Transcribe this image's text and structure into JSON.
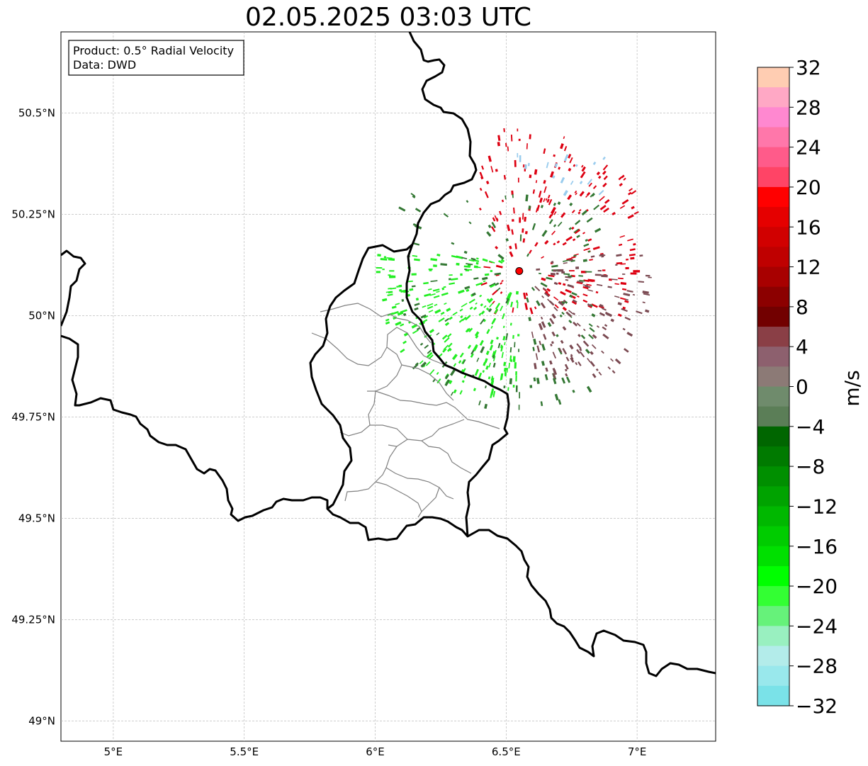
{
  "title": "02.05.2025 03:03 UTC",
  "info_box": {
    "line1": "Product: 0.5° Radial Velocity",
    "line2": "Data: DWD"
  },
  "lon_ticks": [
    {
      "value": 5.0,
      "label": "5°E"
    },
    {
      "value": 5.5,
      "label": "5.5°E"
    },
    {
      "value": 6.0,
      "label": "6°E"
    },
    {
      "value": 6.5,
      "label": "6.5°E"
    },
    {
      "value": 7.0,
      "label": "7°E"
    }
  ],
  "lat_ticks": [
    {
      "value": 50.5,
      "label": "50.5°N"
    },
    {
      "value": 50.25,
      "label": "50.25°N"
    },
    {
      "value": 50.0,
      "label": "50°N"
    },
    {
      "value": 49.75,
      "label": "49.75°N"
    },
    {
      "value": 49.5,
      "label": "49.5°N"
    },
    {
      "value": 49.25,
      "label": "49.25°N"
    },
    {
      "value": 49.0,
      "label": "49°N"
    }
  ],
  "extent": {
    "lon_min": 4.8,
    "lon_max": 7.3,
    "lat_min": 48.95,
    "lat_max": 50.7
  },
  "radar_site": {
    "lon": 6.55,
    "lat": 50.11,
    "color": "#ff0000"
  },
  "colorbar": {
    "unit": "m/s",
    "min": -32,
    "max": 32,
    "tick_labels": [
      "32",
      "28",
      "24",
      "20",
      "16",
      "12",
      "8",
      "4",
      "0",
      "−4",
      "−8",
      "−12",
      "−16",
      "−20",
      "−24",
      "−28",
      "−32"
    ],
    "tick_values": [
      32,
      28,
      24,
      20,
      16,
      12,
      8,
      4,
      0,
      -4,
      -8,
      -12,
      -16,
      -20,
      -24,
      -28,
      -32
    ],
    "colors_top_to_bottom": [
      "#ffcdb2",
      "#ffa8c5",
      "#ff88d0",
      "#ff77aa",
      "#ff5b8a",
      "#ff4466",
      "#ff0000",
      "#e50000",
      "#d10000",
      "#bf0000",
      "#a80000",
      "#8c0000",
      "#720000",
      "#8a3f46",
      "#8d606e",
      "#8c7a76",
      "#6f8b6c",
      "#5b7e57",
      "#006600",
      "#007a00",
      "#008f00",
      "#00a300",
      "#00b800",
      "#00cc00",
      "#00e000",
      "#00ff00",
      "#33ff33",
      "#66f27a",
      "#99f0c0",
      "#b3ecea",
      "#99e8ec",
      "#7ae2e8"
    ]
  },
  "radar_echo_groups": [
    {
      "name": "outbound-red",
      "color": "#dd0011",
      "region": {
        "lon": [
          6.4,
          7.0
        ],
        "lat": [
          50.0,
          50.5
        ]
      }
    },
    {
      "name": "inbound-green",
      "color": "#22ee22",
      "region": {
        "lon": [
          5.95,
          6.55
        ],
        "lat": [
          49.8,
          50.15
        ]
      }
    },
    {
      "name": "dark-green",
      "color": "#337733",
      "region": {
        "lon": [
          6.1,
          6.85
        ],
        "lat": [
          49.7,
          50.3
        ]
      }
    },
    {
      "name": "brown-mauve",
      "color": "#7b4a52",
      "region": {
        "lon": [
          6.6,
          7.05
        ],
        "lat": [
          49.85,
          50.15
        ]
      }
    },
    {
      "name": "light-blue",
      "color": "#99ccee",
      "region": {
        "lon": [
          6.5,
          6.9
        ],
        "lat": [
          50.3,
          50.4
        ]
      }
    }
  ]
}
